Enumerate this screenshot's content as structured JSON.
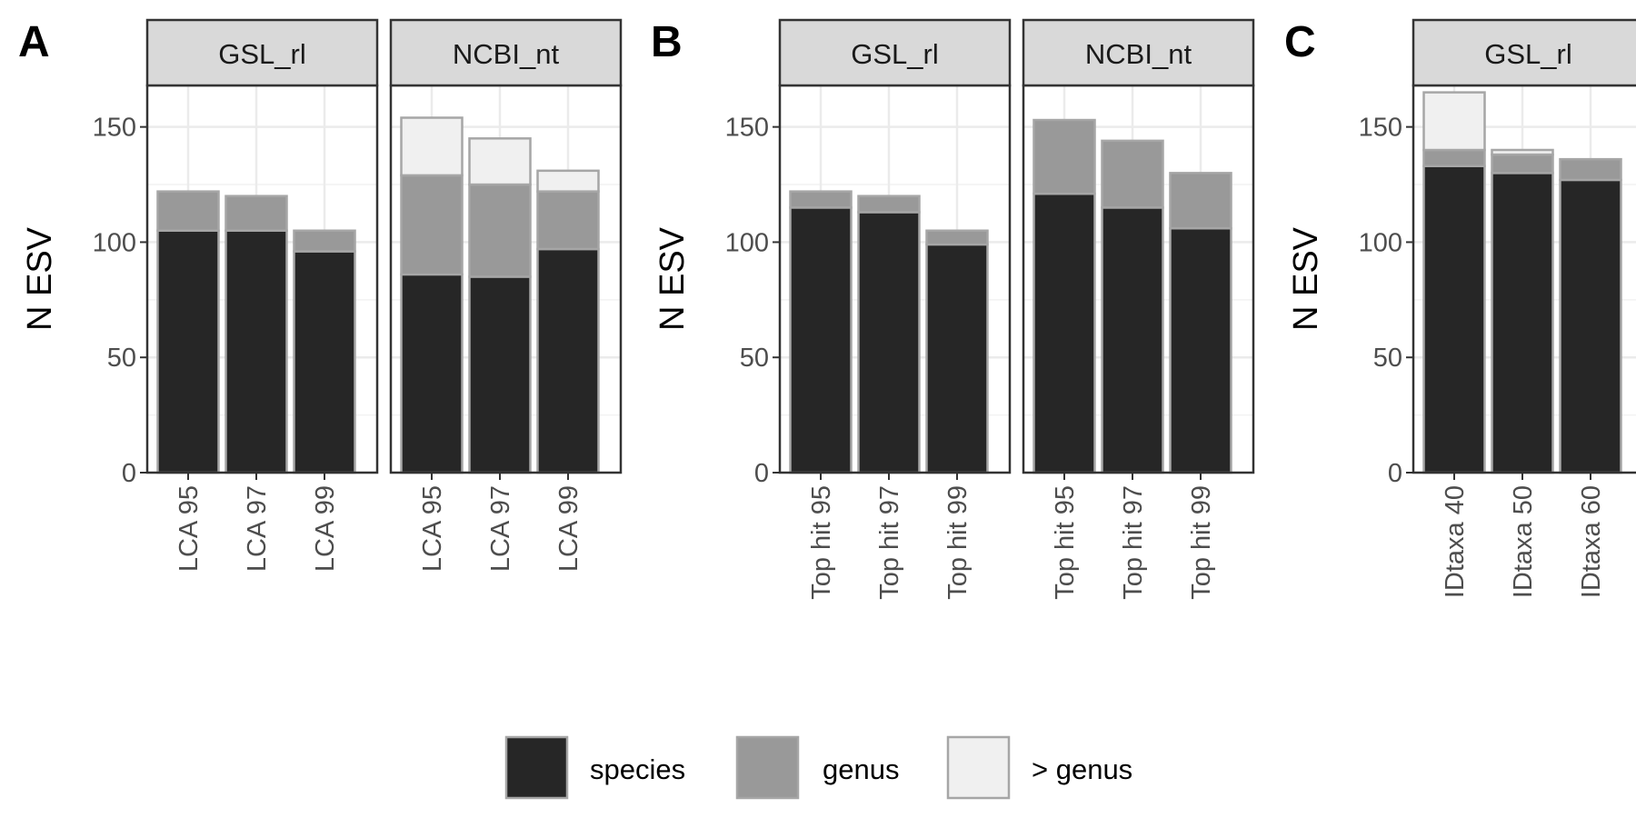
{
  "chart_data": {
    "type": "bar",
    "stacked": true,
    "ylabel": "N ESV",
    "ylim": [
      0,
      168
    ],
    "yticks": [
      0,
      50,
      100,
      150
    ],
    "grid": true,
    "legend_position": "bottom",
    "series": [
      {
        "name": "species",
        "color": "#262626"
      },
      {
        "name": "genus",
        "color": "#999999"
      },
      {
        "name": "> genus",
        "color": "#f0f0f0"
      }
    ],
    "bar_outline_color": "#a6a6a6",
    "panels": [
      {
        "letter": "A",
        "facets": [
          {
            "strip": "GSL_rl",
            "categories": [
              "LCA 95",
              "LCA 97",
              "LCA 99"
            ],
            "values": {
              "species": [
                105,
                105,
                96
              ],
              "genus": [
                17,
                15,
                9
              ],
              "> genus": [
                0,
                0,
                0
              ]
            }
          },
          {
            "strip": "NCBI_nt",
            "categories": [
              "LCA 95",
              "LCA 97",
              "LCA 99"
            ],
            "values": {
              "species": [
                86,
                85,
                97
              ],
              "genus": [
                43,
                40,
                25
              ],
              "> genus": [
                25,
                20,
                9
              ]
            }
          }
        ]
      },
      {
        "letter": "B",
        "facets": [
          {
            "strip": "GSL_rl",
            "categories": [
              "Top hit 95",
              "Top hit 97",
              "Top hit 99"
            ],
            "values": {
              "species": [
                115,
                113,
                99
              ],
              "genus": [
                7,
                7,
                6
              ],
              "> genus": [
                0,
                0,
                0
              ]
            }
          },
          {
            "strip": "NCBI_nt",
            "categories": [
              "Top hit 95",
              "Top hit 97",
              "Top hit 99"
            ],
            "values": {
              "species": [
                121,
                115,
                106
              ],
              "genus": [
                32,
                29,
                24
              ],
              "> genus": [
                0,
                0,
                0
              ]
            }
          }
        ]
      },
      {
        "letter": "C",
        "facets": [
          {
            "strip": "GSL_rl",
            "categories": [
              "IDtaxa 40",
              "IDtaxa 50",
              "IDtaxa 60"
            ],
            "values": {
              "species": [
                133,
                130,
                127
              ],
              "genus": [
                7,
                8,
                9
              ],
              "> genus": [
                25,
                2,
                0
              ]
            }
          }
        ]
      }
    ]
  }
}
